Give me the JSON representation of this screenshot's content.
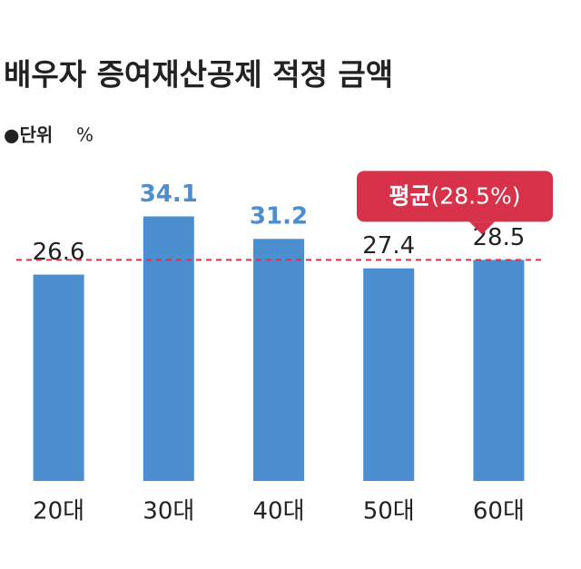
{
  "chart_data": {
    "type": "bar",
    "title": "배우자 증여재산공제 적정 금액",
    "unit_label": "●단위",
    "unit": "%",
    "categories": [
      "20대",
      "30대",
      "40대",
      "50대",
      "60대"
    ],
    "values": [
      26.6,
      34.1,
      31.2,
      27.4,
      28.5
    ],
    "color": "#4b8fd1",
    "value_label_colors": [
      "#222222",
      "#4b8fd1",
      "#4b8fd1",
      "#222222",
      "#222222"
    ],
    "ylim": [
      0,
      40
    ],
    "average": 28.5,
    "average_color": "#d8324a",
    "annotation": [
      "평균",
      "(28.5%)"
    ]
  }
}
